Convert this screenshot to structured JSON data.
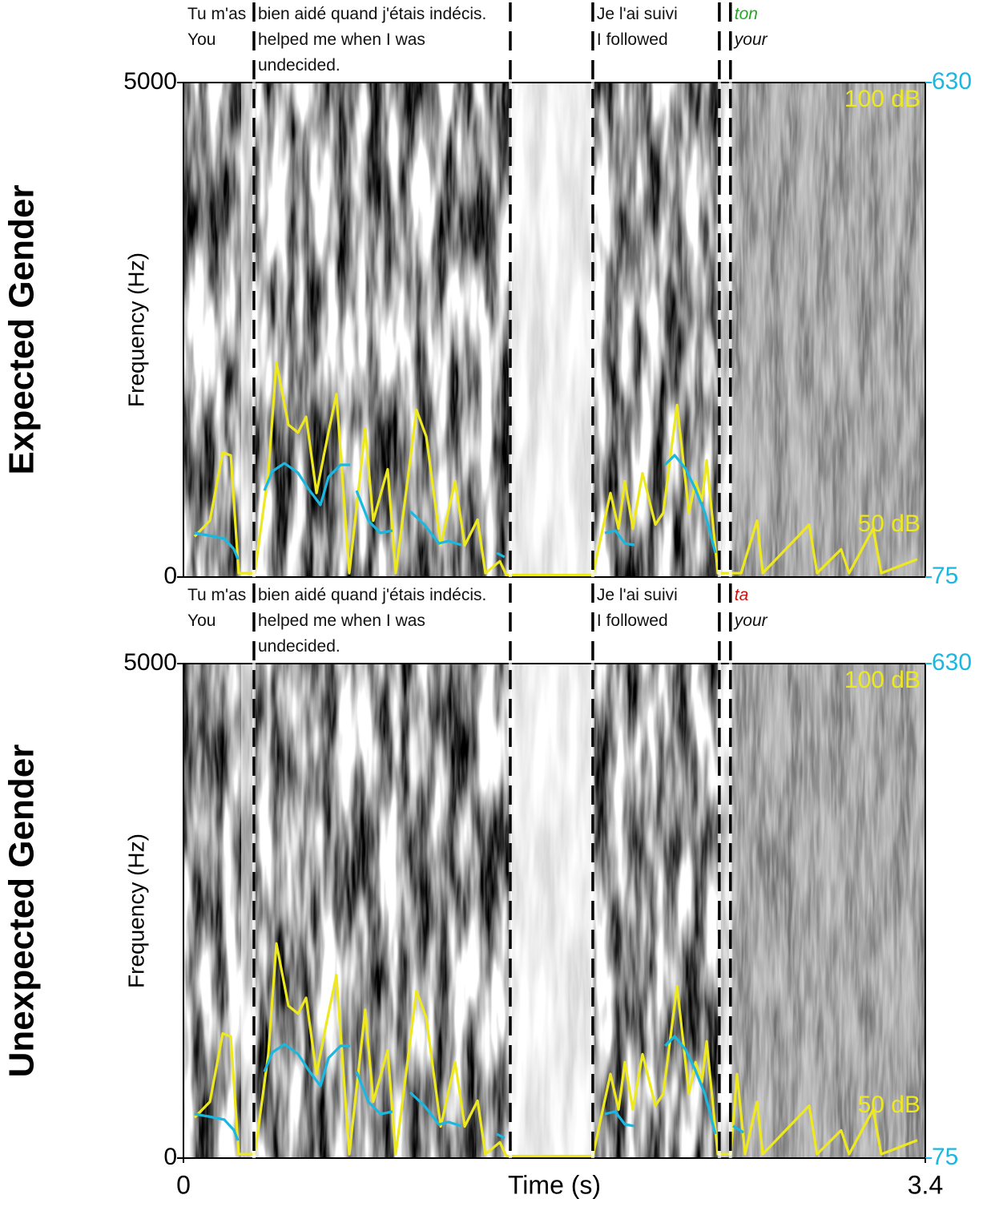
{
  "chart_data": [
    {
      "type": "spectrogram",
      "row_label": "Expected Gender",
      "ylabel": "Frequency (Hz)",
      "xlim": [
        0,
        3.4
      ],
      "ylim": [
        0,
        5000
      ],
      "yticks": [
        0,
        5000
      ],
      "y2lim": [
        75,
        630
      ],
      "y2ticks": [
        75,
        630
      ],
      "y3lim": [
        50,
        100
      ],
      "y3ticks": [
        {
          "value": 100,
          "label": "100 dB"
        },
        {
          "value": 50,
          "label": "50 dB"
        }
      ],
      "boundaries": [
        0.323,
        1.498,
        1.876,
        2.456,
        2.507
      ],
      "words": [
        {
          "text": "Tu m'as",
          "translation": "You",
          "start": 0
        },
        {
          "text": "bien aidé quand j'étais indécis.",
          "translation": "helped me when I was undecided.",
          "start": 0.323
        },
        {
          "text": "Je l'ai suivi",
          "translation": "I followed",
          "start": 1.876
        },
        {
          "text": "ton",
          "translation": "your",
          "start": 2.507,
          "color": "#22aa22",
          "italic": true
        }
      ],
      "series": [
        {
          "color": "#eee820",
          "axis": "y3",
          "x": [
            0.051,
            0.121,
            0.18,
            0.217,
            0.253,
            0.327,
            0.389,
            0.426,
            0.481,
            0.525,
            0.562,
            0.61,
            0.657,
            0.701,
            0.76,
            0.833,
            0.87,
            0.936,
            0.973,
            1.068,
            1.113,
            1.179,
            1.245,
            1.289,
            1.348,
            1.384,
            1.45,
            1.48,
            1.876,
            1.957,
            1.994,
            2.023,
            2.06,
            2.104,
            2.163,
            2.199,
            2.262,
            2.317,
            2.347,
            2.376,
            2.398,
            2.449,
            2.556,
            2.629,
            2.655,
            2.794,
            2.868,
            2.904,
            3.014,
            3.051,
            3.161,
            3.198,
            3.363
          ],
          "values": [
            54.1,
            55.7,
            62.6,
            62.3,
            50.4,
            50.4,
            60.5,
            71.7,
            65.4,
            64.6,
            66.2,
            58.5,
            63.8,
            68.5,
            50.4,
            65.0,
            55.7,
            60.9,
            50.4,
            66.9,
            64.2,
            53.2,
            59.7,
            53.2,
            55.8,
            50.4,
            51.6,
            50.2,
            50.2,
            58.5,
            54.9,
            59.7,
            54.9,
            60.5,
            55.3,
            56.5,
            67.4,
            56.5,
            59.7,
            57.7,
            61.8,
            50.4,
            50.4,
            55.7,
            50.4,
            53.6,
            55.3,
            50.4,
            52.8,
            50.4,
            54.9,
            50.4,
            51.8
          ]
        },
        {
          "color": "#1ab8e0",
          "axis": "y2",
          "x": [
            0.051,
            0.114,
            0.187,
            0.231,
            0.25,
            0.31,
            0.371,
            0.408,
            0.463,
            0.525,
            0.573,
            0.628,
            0.665,
            0.72,
            0.764,
            0.78,
            0.793,
            0.848,
            0.903,
            0.958,
            1.0,
            1.039,
            1.105,
            1.171,
            1.215,
            1.274,
            1.35,
            1.436,
            1.472,
            1.7,
            1.931,
            1.979,
            2.023,
            2.067,
            2.15,
            2.207,
            2.251,
            2.302,
            2.346,
            2.39,
            2.438
          ],
          "values": [
            124.5,
            121.8,
            118.2,
            106.5,
            94.8,
            null,
            172.1,
            193.7,
            202.7,
            191.9,
            173.9,
            156.0,
            187.4,
            200.9,
            200.9,
            null,
            172.1,
            138.0,
            124.5,
            127.2,
            null,
            148.8,
            133.5,
            112.8,
            115.5,
            111.0,
            null,
            102.0,
            97.5,
            null,
            124.5,
            127.2,
            112.8,
            111.0,
            null,
            200.9,
            211.7,
            196.4,
            173.9,
            147.0,
            102.0
          ]
        }
      ]
    },
    {
      "type": "spectrogram",
      "row_label": "Unexpected Gender",
      "ylabel": "Frequency (Hz)",
      "xlabel": "Time (s)",
      "xlim": [
        0,
        3.4
      ],
      "xticks": [
        0,
        3.4
      ],
      "ylim": [
        0,
        5000
      ],
      "yticks": [
        0,
        5000
      ],
      "y2lim": [
        75,
        630
      ],
      "y2ticks": [
        75,
        630
      ],
      "y3lim": [
        50,
        100
      ],
      "y3ticks": [
        {
          "value": 100,
          "label": "100 dB"
        },
        {
          "value": 50,
          "label": "50 dB"
        }
      ],
      "boundaries": [
        0.323,
        1.498,
        1.876,
        2.456,
        2.507
      ],
      "words": [
        {
          "text": "Tu m'as",
          "translation": "You",
          "start": 0
        },
        {
          "text": "bien aidé quand j'étais indécis.",
          "translation": "helped me when I was undecided.",
          "start": 0.323
        },
        {
          "text": "Je l'ai suivi",
          "translation": "I followed",
          "start": 1.876
        },
        {
          "text": "ta",
          "translation": "your",
          "start": 2.507,
          "color": "#cc1111",
          "italic": true
        }
      ],
      "series": [
        {
          "color": "#eee820",
          "axis": "y3",
          "x": [
            0.051,
            0.121,
            0.18,
            0.217,
            0.253,
            0.327,
            0.389,
            0.426,
            0.481,
            0.525,
            0.562,
            0.61,
            0.657,
            0.701,
            0.76,
            0.833,
            0.87,
            0.936,
            0.973,
            1.068,
            1.113,
            1.179,
            1.245,
            1.289,
            1.348,
            1.384,
            1.45,
            1.48,
            1.876,
            1.957,
            1.994,
            2.023,
            2.06,
            2.104,
            2.163,
            2.199,
            2.262,
            2.317,
            2.347,
            2.376,
            2.398,
            2.449,
            2.508,
            2.537,
            2.574,
            2.629,
            2.655,
            2.794,
            2.868,
            2.904,
            3.014,
            3.051,
            3.161,
            3.198,
            3.363
          ],
          "values": [
            54.1,
            55.7,
            62.6,
            62.3,
            50.4,
            50.4,
            60.5,
            71.7,
            65.4,
            64.6,
            66.2,
            58.5,
            63.8,
            68.5,
            50.4,
            65.0,
            55.7,
            60.9,
            50.4,
            66.9,
            64.2,
            53.2,
            59.7,
            53.2,
            55.8,
            50.4,
            51.6,
            50.2,
            50.2,
            58.5,
            54.9,
            59.7,
            54.9,
            60.5,
            55.3,
            56.5,
            67.4,
            56.5,
            59.7,
            57.7,
            61.8,
            50.4,
            50.4,
            58.5,
            50.4,
            55.7,
            50.4,
            53.6,
            55.3,
            50.4,
            52.8,
            50.4,
            54.9,
            50.4,
            51.8
          ]
        },
        {
          "color": "#1ab8e0",
          "axis": "y2",
          "x": [
            0.051,
            0.114,
            0.187,
            0.231,
            0.25,
            0.31,
            0.371,
            0.408,
            0.463,
            0.525,
            0.573,
            0.628,
            0.665,
            0.72,
            0.764,
            0.78,
            0.793,
            0.848,
            0.903,
            0.958,
            1.0,
            1.039,
            1.105,
            1.171,
            1.215,
            1.274,
            1.35,
            1.436,
            1.472,
            1.7,
            1.931,
            1.979,
            2.023,
            2.067,
            2.15,
            2.207,
            2.251,
            2.302,
            2.346,
            2.39,
            2.438,
            2.48,
            2.519,
            2.567
          ],
          "values": [
            124.5,
            121.8,
            118.2,
            106.5,
            94.8,
            null,
            172.1,
            193.7,
            202.7,
            191.9,
            173.9,
            156.0,
            187.4,
            200.9,
            200.9,
            null,
            172.1,
            138.0,
            124.5,
            127.2,
            null,
            148.8,
            133.5,
            112.8,
            115.5,
            111.0,
            null,
            102.0,
            97.5,
            null,
            124.5,
            127.2,
            112.8,
            111.0,
            null,
            200.9,
            211.7,
            196.4,
            173.9,
            147.0,
            102.0,
            null,
            111.0,
            103.8
          ]
        }
      ]
    }
  ]
}
